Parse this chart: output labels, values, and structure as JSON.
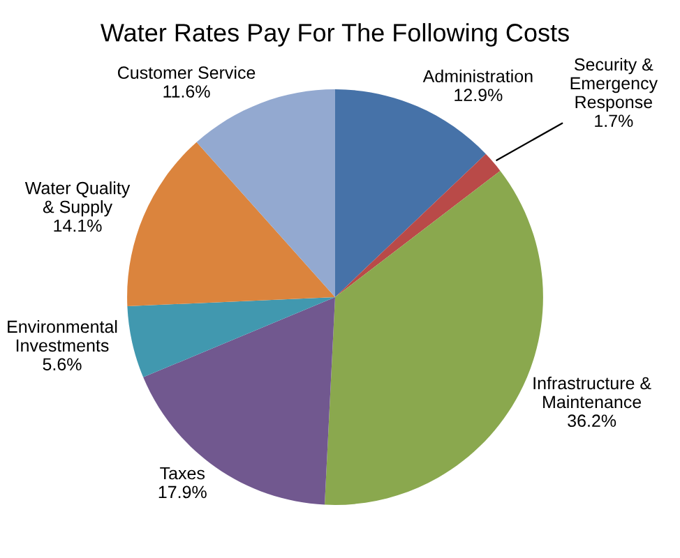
{
  "chart_data": {
    "type": "pie",
    "title": "Water Rates Pay For The Following Costs",
    "categories": [
      "Administration",
      "Security &\nEmergency\nResponse",
      "Infrastructure &\nMaintenance",
      "Taxes",
      "Environmental\nInvestments",
      "Water Quality\n& Supply",
      "Customer Service"
    ],
    "values": [
      12.9,
      1.7,
      36.2,
      17.9,
      5.6,
      14.1,
      11.6
    ],
    "value_labels": [
      "12.9%",
      "1.7%",
      "36.2%",
      "17.9%",
      "5.6%",
      "14.1%",
      "11.6%"
    ],
    "colors": [
      "#4672a8",
      "#b94a48",
      "#8aa84e",
      "#71588f",
      "#4198af",
      "#db843d",
      "#93a9d0"
    ]
  }
}
